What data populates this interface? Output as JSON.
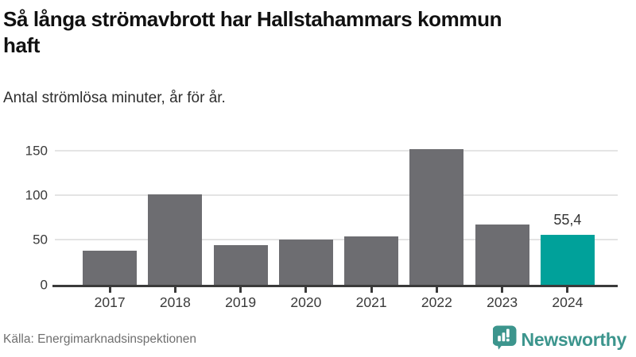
{
  "header": {
    "title_lines": [
      "Så långa strömavbrott har Hallstahammars kommun",
      "haft"
    ],
    "subtitle": "Antal strömlösa minuter, år för år."
  },
  "chart_data": {
    "type": "bar",
    "title": "Så långa strömavbrott har Hallstahammars kommun haft",
    "subtitle": "Antal strömlösa minuter, år för år.",
    "categories": [
      "2017",
      "2018",
      "2019",
      "2020",
      "2021",
      "2022",
      "2023",
      "2024"
    ],
    "values": [
      38,
      101,
      44.3,
      50.5,
      54,
      151.5,
      67.5,
      55.4
    ],
    "xlabel": "",
    "ylabel": "",
    "ylim": [
      0,
      160
    ],
    "yticks": [
      0,
      50,
      100,
      150
    ],
    "grid": "horizontal",
    "legend": "none",
    "bar_color": "#6d6d71",
    "highlight_color": "#00a19a",
    "highlight_index": 7,
    "highlight_label": "55,4"
  },
  "footer": {
    "source": "Källa: Energimarknadsinspektionen",
    "brand": "Newsworthy",
    "brand_color": "#3c958d"
  }
}
